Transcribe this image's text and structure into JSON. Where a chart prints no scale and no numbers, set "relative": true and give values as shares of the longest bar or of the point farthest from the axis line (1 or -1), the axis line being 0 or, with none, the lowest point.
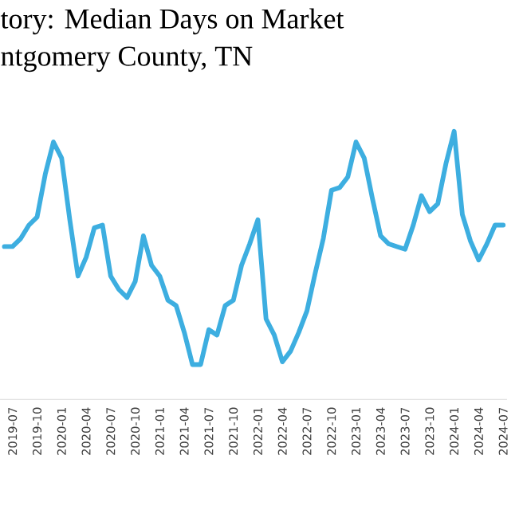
{
  "chart_data": {
    "type": "line",
    "title": "tory: Median Days on Market",
    "subtitle": "ntgomery County, TN",
    "relative": true,
    "color": "#3daee0",
    "x": [
      "2019-06",
      "2019-07",
      "2019-08",
      "2019-09",
      "2019-10",
      "2019-11",
      "2019-12",
      "2020-01",
      "2020-02",
      "2020-03",
      "2020-04",
      "2020-05",
      "2020-06",
      "2020-07",
      "2020-08",
      "2020-09",
      "2020-10",
      "2020-11",
      "2020-12",
      "2021-01",
      "2021-02",
      "2021-03",
      "2021-04",
      "2021-05",
      "2021-06",
      "2021-07",
      "2021-08",
      "2021-09",
      "2021-10",
      "2021-11",
      "2021-12",
      "2022-01",
      "2022-02",
      "2022-03",
      "2022-04",
      "2022-05",
      "2022-06",
      "2022-07",
      "2022-08",
      "2022-09",
      "2022-10",
      "2022-11",
      "2022-12",
      "2023-01",
      "2023-02",
      "2023-03",
      "2023-04",
      "2023-05",
      "2023-06",
      "2023-07",
      "2023-08",
      "2023-09",
      "2023-10",
      "2023-11",
      "2023-12",
      "2024-01",
      "2024-02",
      "2024-03",
      "2024-04",
      "2024-05",
      "2024-06",
      "2024-07"
    ],
    "values": [
      0.57,
      0.57,
      0.6,
      0.65,
      0.68,
      0.84,
      0.96,
      0.9,
      0.67,
      0.46,
      0.53,
      0.64,
      0.65,
      0.46,
      0.41,
      0.38,
      0.44,
      0.61,
      0.5,
      0.46,
      0.37,
      0.35,
      0.25,
      0.13,
      0.13,
      0.26,
      0.24,
      0.35,
      0.37,
      0.5,
      0.58,
      0.67,
      0.3,
      0.24,
      0.14,
      0.18,
      0.25,
      0.33,
      0.47,
      0.6,
      0.78,
      0.79,
      0.83,
      0.96,
      0.9,
      0.75,
      0.61,
      0.58,
      0.57,
      0.56,
      0.65,
      0.76,
      0.7,
      0.73,
      0.88,
      1,
      0.69,
      0.59,
      0.52,
      0.58,
      0.65,
      0.65
    ],
    "xlim": [
      "2019-05-15",
      "2024-07-15"
    ],
    "xticks": [
      "2019-07",
      "2019-10",
      "2020-01",
      "2020-04",
      "2020-07",
      "2020-10",
      "2021-01",
      "2021-04",
      "2021-07",
      "2021-10",
      "2022-01",
      "2022-04",
      "2022-07",
      "2022-10",
      "2023-01",
      "2023-04",
      "2023-07",
      "2023-10",
      "2024-01",
      "2024-04",
      "2024-07"
    ]
  }
}
